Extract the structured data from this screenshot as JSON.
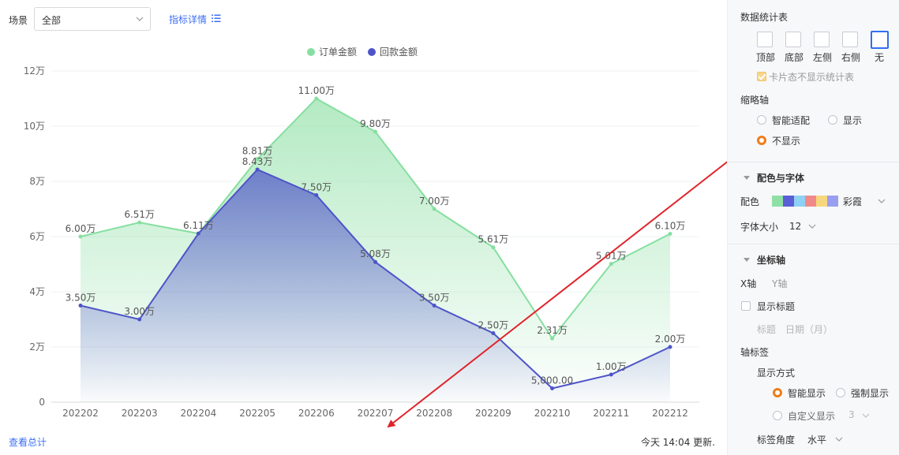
{
  "filter": {
    "label": "场景",
    "value": "全部",
    "metric_link": "指标详情"
  },
  "footer": {
    "summary_link": "查看总计",
    "updated": "今天 14:04 更新."
  },
  "chart_data": {
    "type": "line-area",
    "categories": [
      "202202",
      "202203",
      "202204",
      "202205",
      "202206",
      "202207",
      "202208",
      "202209",
      "202210",
      "202211",
      "202212"
    ],
    "series": [
      {
        "name": "订单金额",
        "color": "#86dfa0",
        "values": [
          60000,
          65100,
          61100,
          88100,
          110000,
          98000,
          70000,
          56100,
          23100,
          50100,
          61000
        ],
        "labels": [
          "6.00万",
          "6.51万",
          "6.11万",
          "8.81万",
          "11.00万",
          "9.80万",
          "7.00万",
          "5.61万",
          "2.31万",
          "5.01万",
          "6.10万"
        ]
      },
      {
        "name": "回款金额",
        "color": "#4e54c8",
        "values": [
          35000,
          30000,
          61100,
          84300,
          75000,
          50800,
          35000,
          25000,
          5000,
          10000,
          20000
        ],
        "labels": [
          "3.50万",
          "3.00万",
          "",
          "8.43万",
          "7.50万",
          "5.08万",
          "3.50万",
          "2.50万",
          "5,000.00",
          "1.00万",
          "2.00万"
        ]
      }
    ],
    "y_ticks": [
      "0",
      "2万",
      "4万",
      "6万",
      "8万",
      "10万",
      "12万"
    ],
    "ylim": [
      0,
      120000
    ],
    "legend_position": "top-center",
    "grid": true
  },
  "panel": {
    "stats_title": "数据统计表",
    "positions": [
      "顶部",
      "底部",
      "左侧",
      "右侧",
      "无"
    ],
    "active_position": "无",
    "card_hide": "卡片态不显示统计表",
    "zoom_title": "缩略轴",
    "zoom_options": [
      "智能适配",
      "显示",
      "不显示"
    ],
    "zoom_selected": "不显示",
    "color_font_title": "配色与字体",
    "color_label": "配色",
    "palette": [
      "#8fe0a6",
      "#5b5fd6",
      "#8ed1f4",
      "#f08a8a",
      "#f7d77e",
      "#9a9ef0"
    ],
    "palette_name": "彩霞",
    "font_size_label": "字体大小",
    "font_size": "12",
    "axis_title": "坐标轴",
    "axis_tabs": [
      "X轴",
      "Y轴"
    ],
    "show_title": "显示标题",
    "title_label": "标题",
    "title_value": "日期（月）",
    "axis_label_title": "轴标签",
    "display_mode": "显示方式",
    "mode_options": [
      "智能显示",
      "强制显示",
      "自定义显示"
    ],
    "custom_value": "3",
    "label_angle": "标签角度",
    "angle_value": "水平"
  }
}
